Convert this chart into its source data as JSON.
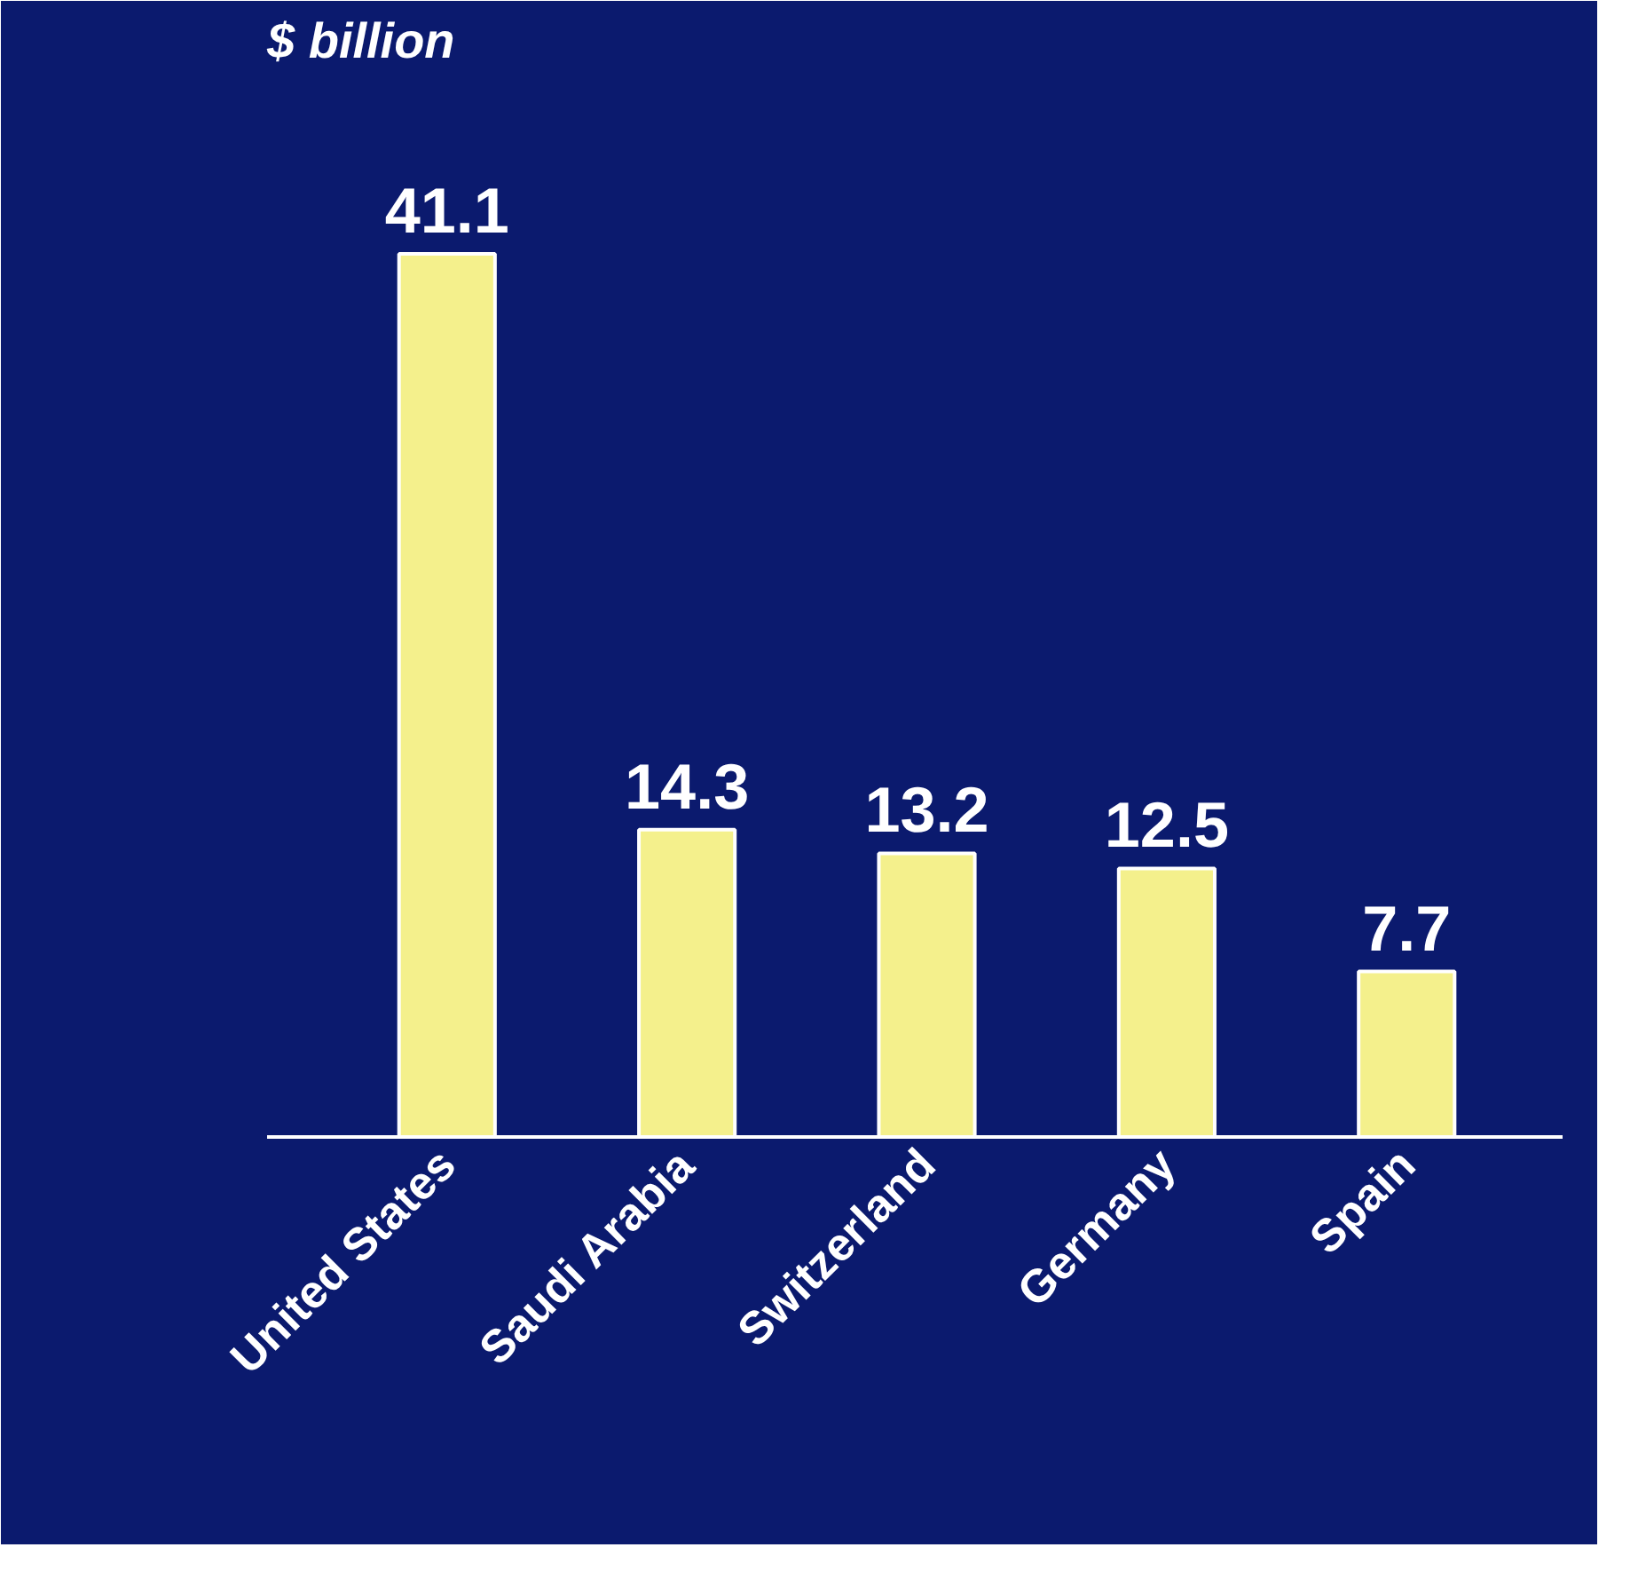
{
  "chart_data": {
    "type": "bar",
    "title": "$ billion",
    "categories": [
      "United States",
      "Saudi Arabia",
      "Switzerland",
      "Germany",
      "Spain"
    ],
    "values": [
      41.1,
      14.3,
      13.2,
      12.5,
      7.7
    ],
    "color": "#f4f08c",
    "data_labels": true,
    "grid": false
  }
}
